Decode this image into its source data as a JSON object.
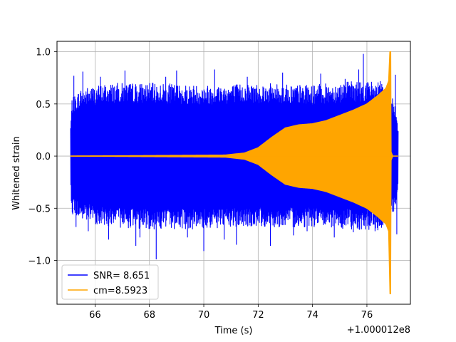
{
  "chart_data": {
    "type": "line",
    "xlabel": "Time (s)",
    "ylabel": "Whitened strain",
    "x_offset_label": "+1.000012e8",
    "xlim": [
      64.6,
      77.6
    ],
    "ylim": [
      -1.42,
      1.1
    ],
    "xticks": [
      {
        "value": 66,
        "label": "66"
      },
      {
        "value": 68,
        "label": "68"
      },
      {
        "value": 70,
        "label": "70"
      },
      {
        "value": 72,
        "label": "72"
      },
      {
        "value": 74,
        "label": "74"
      },
      {
        "value": 76,
        "label": "76"
      }
    ],
    "yticks": [
      {
        "value": 1.0,
        "label": "1.0"
      },
      {
        "value": 0.5,
        "label": "0.5"
      },
      {
        "value": 0.0,
        "label": "0.0"
      },
      {
        "value": -0.5,
        "label": "−0.5"
      },
      {
        "value": -1.0,
        "label": "−1.0"
      }
    ],
    "grid": true,
    "legend_position": "lower-left",
    "series": [
      {
        "name": "SNR= 8.651",
        "color": "#0000ff",
        "kind": "noise",
        "x_range": [
          65.1,
          77.15
        ],
        "envelope_upper": [
          [
            65.1,
            0.3
          ],
          [
            65.15,
            0.55
          ],
          [
            65.5,
            0.65
          ],
          [
            66.5,
            0.7
          ],
          [
            68.0,
            0.7
          ],
          [
            70.0,
            0.68
          ],
          [
            72.0,
            0.7
          ],
          [
            74.0,
            0.68
          ],
          [
            75.5,
            0.72
          ],
          [
            76.5,
            0.72
          ],
          [
            76.85,
            0.55
          ],
          [
            77.0,
            0.55
          ],
          [
            77.15,
            0.3
          ]
        ],
        "envelope_lower": [
          [
            65.1,
            -0.3
          ],
          [
            65.15,
            -0.55
          ],
          [
            65.5,
            -0.62
          ],
          [
            66.5,
            -0.68
          ],
          [
            68.0,
            -0.7
          ],
          [
            70.0,
            -0.7
          ],
          [
            72.0,
            -0.68
          ],
          [
            74.0,
            -0.68
          ],
          [
            75.5,
            -0.7
          ],
          [
            76.5,
            -0.72
          ],
          [
            76.85,
            -0.55
          ],
          [
            77.0,
            -0.55
          ],
          [
            77.15,
            -0.3
          ]
        ],
        "spikes": [
          [
            65.22,
            0.77
          ],
          [
            65.3,
            -0.68
          ],
          [
            65.55,
            0.81
          ],
          [
            65.75,
            -0.72
          ],
          [
            66.2,
            0.76
          ],
          [
            66.5,
            -0.8
          ],
          [
            67.1,
            0.82
          ],
          [
            67.5,
            -0.86
          ],
          [
            67.65,
            -0.78
          ],
          [
            68.25,
            -0.99
          ],
          [
            68.6,
            0.76
          ],
          [
            69.0,
            0.82
          ],
          [
            69.4,
            -0.78
          ],
          [
            70.0,
            -0.91
          ],
          [
            70.4,
            0.83
          ],
          [
            70.75,
            -0.8
          ],
          [
            71.2,
            -0.85
          ],
          [
            71.6,
            0.76
          ],
          [
            72.45,
            -0.86
          ],
          [
            72.9,
            0.8
          ],
          [
            73.3,
            -0.76
          ],
          [
            73.8,
            -0.72
          ],
          [
            74.3,
            0.79
          ],
          [
            74.8,
            -0.78
          ],
          [
            75.2,
            0.74
          ],
          [
            75.5,
            -0.73
          ],
          [
            75.7,
            0.83
          ],
          [
            75.87,
            0.98
          ],
          [
            76.3,
            -0.72
          ],
          [
            77.05,
            0.78
          ],
          [
            77.1,
            -0.75
          ]
        ]
      },
      {
        "name": "cm=8.5923",
        "color": "#ffa500",
        "kind": "chirp",
        "x_range": [
          65.1,
          77.15
        ],
        "envelope": [
          [
            65.1,
            0.0
          ],
          [
            70.8,
            0.01
          ],
          [
            71.5,
            0.03
          ],
          [
            72.0,
            0.08
          ],
          [
            72.5,
            0.18
          ],
          [
            73.0,
            0.27
          ],
          [
            73.5,
            0.3
          ],
          [
            74.0,
            0.31
          ],
          [
            74.5,
            0.34
          ],
          [
            75.0,
            0.39
          ],
          [
            75.5,
            0.44
          ],
          [
            76.0,
            0.5
          ],
          [
            76.4,
            0.58
          ],
          [
            76.7,
            0.65
          ],
          [
            76.8,
            0.72
          ]
        ],
        "peak": {
          "x": 76.86,
          "max": 1.0,
          "min": -1.32
        },
        "ringdown_end": 76.95
      }
    ]
  }
}
